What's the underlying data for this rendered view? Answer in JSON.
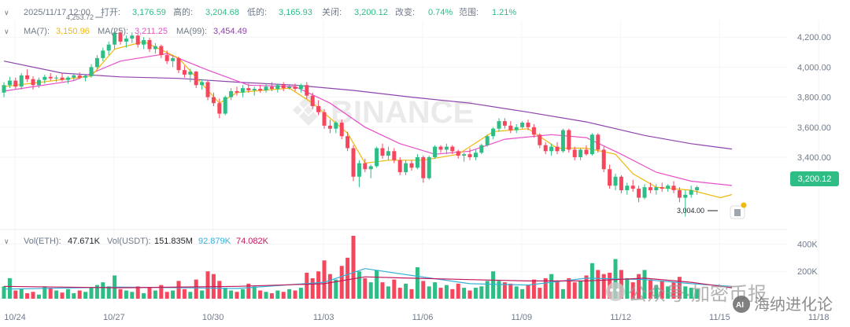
{
  "header": {
    "toggle_glyph": "∨",
    "datetime": "2025/11/17 12:00",
    "open_label": "打开:",
    "open": "3,176.59",
    "high_label": "高的:",
    "high": "3,204.68",
    "low_label": "低的:",
    "low": "3,165.93",
    "close_label": "关闭:",
    "close": "3,200.12",
    "change_label": "改变:",
    "change": "0.74%",
    "range_label": "范围:",
    "range": "1.21%"
  },
  "ma_legend": {
    "toggle_glyph": "∨",
    "ma7_label": "MA(7):",
    "ma7": "3,150.96",
    "ma25_label": "MA(25):",
    "ma25": "3,211.25",
    "ma99_label": "MA(99):",
    "ma99": "3,454.49"
  },
  "vol_legend": {
    "toggle_glyph": "∨",
    "eth_label": "Vol(ETH):",
    "eth": "47.671K",
    "usdt_label": "Vol(USDT):",
    "usdt": "151.835M",
    "ma1": "92.879K",
    "ma2": "74.082K"
  },
  "price_badge": "3,200.12",
  "high_marker": "4,253.72",
  "low_marker": "3,004.00",
  "watermark": {
    "text": "BINANCE",
    "icon": "binance-logo-icon"
  },
  "overlay_watermark": {
    "icon": "wechat-icon",
    "label": "公众号·加密币报"
  },
  "overlay_watermark2": {
    "icon": "ai-icon",
    "label": "海纳进化论"
  },
  "side_icon": "book-icon",
  "colors": {
    "up": "#2ebd85",
    "down": "#f6465d",
    "ma7": "#f0b90b",
    "ma25": "#e84fc8",
    "ma99": "#8e44ad",
    "vma1": "#35b0d6",
    "vma2": "#c2185b"
  },
  "chart_data": {
    "type": "candlestick",
    "title": "",
    "xlabel": "",
    "ylabel": "",
    "x_ticks": [
      "10/24",
      "10/27",
      "10/30",
      "11/03",
      "11/06",
      "11/09",
      "11/12",
      "11/15",
      "11/18"
    ],
    "y_ticks": [
      "4,200.00",
      "4,000.00",
      "3,800.00",
      "3,600.00",
      "3,400.00"
    ],
    "ylim": [
      2960,
      4290
    ],
    "vol_ticks": [
      "400K",
      "200K"
    ],
    "vol_ylim": [
      0,
      460000
    ],
    "legend_position": "top-left",
    "interval": "12h",
    "series": [
      {
        "name": "MA(7)",
        "last": 3150.96
      },
      {
        "name": "MA(25)",
        "last": 3211.25
      },
      {
        "name": "MA(99)",
        "last": 3454.49
      }
    ],
    "ohlc": [
      [
        3830,
        3900,
        3800,
        3880
      ],
      [
        3880,
        3935,
        3860,
        3910
      ],
      [
        3910,
        3930,
        3855,
        3870
      ],
      [
        3870,
        3960,
        3850,
        3945
      ],
      [
        3945,
        3985,
        3900,
        3920
      ],
      [
        3920,
        3940,
        3850,
        3880
      ],
      [
        3880,
        3930,
        3860,
        3915
      ],
      [
        3915,
        3950,
        3890,
        3935
      ],
      [
        3935,
        3960,
        3910,
        3925
      ],
      [
        3925,
        3945,
        3900,
        3930
      ],
      [
        3930,
        3960,
        3905,
        3915
      ],
      [
        3915,
        3940,
        3890,
        3930
      ],
      [
        3930,
        3960,
        3910,
        3945
      ],
      [
        3945,
        3965,
        3920,
        3930
      ],
      [
        3930,
        3950,
        3905,
        3940
      ],
      [
        3940,
        4020,
        3930,
        4000
      ],
      [
        4000,
        4080,
        3985,
        4060
      ],
      [
        4060,
        4130,
        4040,
        4110
      ],
      [
        4110,
        4170,
        4080,
        4150
      ],
      [
        4150,
        4253.72,
        4120,
        4230
      ],
      [
        4230,
        4240,
        4150,
        4170
      ],
      [
        4170,
        4210,
        4130,
        4190
      ],
      [
        4190,
        4230,
        4160,
        4210
      ],
      [
        4210,
        4220,
        4130,
        4150
      ],
      [
        4150,
        4200,
        4120,
        4180
      ],
      [
        4180,
        4195,
        4100,
        4120
      ],
      [
        4120,
        4160,
        4090,
        4140
      ],
      [
        4140,
        4150,
        4060,
        4080
      ],
      [
        4080,
        4110,
        4020,
        4040
      ],
      [
        4040,
        4080,
        4000,
        4060
      ],
      [
        4060,
        4070,
        3960,
        3980
      ],
      [
        3980,
        4010,
        3930,
        3950
      ],
      [
        3950,
        3990,
        3900,
        3970
      ],
      [
        3970,
        3975,
        3860,
        3880
      ],
      [
        3880,
        3920,
        3850,
        3900
      ],
      [
        3900,
        3910,
        3780,
        3800
      ],
      [
        3800,
        3830,
        3740,
        3760
      ],
      [
        3760,
        3790,
        3660,
        3690
      ],
      [
        3690,
        3810,
        3680,
        3800
      ],
      [
        3800,
        3860,
        3780,
        3840
      ],
      [
        3840,
        3870,
        3810,
        3830
      ],
      [
        3830,
        3880,
        3800,
        3860
      ],
      [
        3860,
        3890,
        3830,
        3845
      ],
      [
        3845,
        3870,
        3810,
        3855
      ],
      [
        3855,
        3880,
        3830,
        3845
      ],
      [
        3845,
        3890,
        3830,
        3870
      ],
      [
        3870,
        3900,
        3840,
        3855
      ],
      [
        3855,
        3890,
        3830,
        3880
      ],
      [
        3880,
        3900,
        3840,
        3860
      ],
      [
        3860,
        3880,
        3850,
        3870
      ],
      [
        3870,
        3890,
        3840,
        3855
      ],
      [
        3855,
        3890,
        3830,
        3880
      ],
      [
        3880,
        3900,
        3790,
        3810
      ],
      [
        3810,
        3830,
        3720,
        3740
      ],
      [
        3740,
        3780,
        3680,
        3700
      ],
      [
        3700,
        3720,
        3590,
        3610
      ],
      [
        3610,
        3650,
        3560,
        3590
      ],
      [
        3590,
        3640,
        3560,
        3630
      ],
      [
        3630,
        3650,
        3520,
        3540
      ],
      [
        3540,
        3570,
        3440,
        3460
      ],
      [
        3460,
        3480,
        3240,
        3270
      ],
      [
        3270,
        3380,
        3200,
        3360
      ],
      [
        3360,
        3390,
        3300,
        3320
      ],
      [
        3320,
        3350,
        3260,
        3340
      ],
      [
        3340,
        3470,
        3330,
        3460
      ],
      [
        3460,
        3490,
        3390,
        3410
      ],
      [
        3410,
        3470,
        3380,
        3440
      ],
      [
        3440,
        3460,
        3360,
        3380
      ],
      [
        3380,
        3400,
        3280,
        3300
      ],
      [
        3300,
        3380,
        3280,
        3360
      ],
      [
        3360,
        3380,
        3310,
        3330
      ],
      [
        3330,
        3420,
        3320,
        3400
      ],
      [
        3400,
        3410,
        3230,
        3260
      ],
      [
        3260,
        3410,
        3250,
        3400
      ],
      [
        3400,
        3480,
        3390,
        3470
      ],
      [
        3470,
        3480,
        3430,
        3450
      ],
      [
        3450,
        3490,
        3420,
        3470
      ],
      [
        3470,
        3480,
        3420,
        3440
      ],
      [
        3440,
        3450,
        3390,
        3410
      ],
      [
        3410,
        3430,
        3370,
        3420
      ],
      [
        3420,
        3460,
        3380,
        3400
      ],
      [
        3400,
        3450,
        3380,
        3430
      ],
      [
        3430,
        3490,
        3420,
        3480
      ],
      [
        3480,
        3550,
        3470,
        3540
      ],
      [
        3540,
        3600,
        3520,
        3590
      ],
      [
        3590,
        3660,
        3570,
        3640
      ],
      [
        3640,
        3660,
        3590,
        3610
      ],
      [
        3610,
        3640,
        3560,
        3580
      ],
      [
        3580,
        3620,
        3560,
        3600
      ],
      [
        3600,
        3640,
        3590,
        3630
      ],
      [
        3630,
        3650,
        3580,
        3600
      ],
      [
        3600,
        3620,
        3530,
        3550
      ],
      [
        3550,
        3560,
        3460,
        3480
      ],
      [
        3480,
        3500,
        3420,
        3440
      ],
      [
        3440,
        3490,
        3410,
        3470
      ],
      [
        3470,
        3500,
        3420,
        3440
      ],
      [
        3440,
        3590,
        3430,
        3580
      ],
      [
        3580,
        3590,
        3430,
        3450
      ],
      [
        3450,
        3470,
        3380,
        3400
      ],
      [
        3400,
        3460,
        3380,
        3450
      ],
      [
        3450,
        3480,
        3410,
        3420
      ],
      [
        3420,
        3560,
        3410,
        3550
      ],
      [
        3550,
        3560,
        3430,
        3450
      ],
      [
        3450,
        3470,
        3300,
        3320
      ],
      [
        3320,
        3350,
        3190,
        3210
      ],
      [
        3210,
        3290,
        3180,
        3270
      ],
      [
        3270,
        3280,
        3160,
        3180
      ],
      [
        3180,
        3230,
        3150,
        3210
      ],
      [
        3210,
        3250,
        3170,
        3190
      ],
      [
        3190,
        3210,
        3100,
        3130
      ],
      [
        3130,
        3220,
        3120,
        3200
      ],
      [
        3200,
        3230,
        3160,
        3180
      ],
      [
        3180,
        3220,
        3150,
        3200
      ],
      [
        3200,
        3230,
        3170,
        3190
      ],
      [
        3190,
        3220,
        3170,
        3210
      ],
      [
        3210,
        3240,
        3160,
        3180
      ],
      [
        3180,
        3200,
        3100,
        3130
      ],
      [
        3130,
        3180,
        3004,
        3150
      ],
      [
        3150,
        3210,
        3130,
        3180
      ],
      [
        3180,
        3210,
        3150,
        3200.12
      ]
    ],
    "ma7": [
      [
        0,
        3870
      ],
      [
        15,
        3940
      ],
      [
        19,
        4120
      ],
      [
        24,
        4170
      ],
      [
        30,
        4060
      ],
      [
        37,
        3760
      ],
      [
        40,
        3830
      ],
      [
        49,
        3860
      ],
      [
        53,
        3760
      ],
      [
        59,
        3560
      ],
      [
        62,
        3360
      ],
      [
        66,
        3380
      ],
      [
        72,
        3380
      ],
      [
        78,
        3420
      ],
      [
        84,
        3570
      ],
      [
        90,
        3590
      ],
      [
        95,
        3460
      ],
      [
        100,
        3460
      ],
      [
        105,
        3420
      ],
      [
        108,
        3290
      ],
      [
        112,
        3200
      ],
      [
        118,
        3180
      ],
      [
        123,
        3130
      ],
      [
        125,
        3150.96
      ]
    ],
    "ma25": [
      [
        0,
        3840
      ],
      [
        12,
        3910
      ],
      [
        20,
        4040
      ],
      [
        28,
        4090
      ],
      [
        35,
        3980
      ],
      [
        42,
        3880
      ],
      [
        50,
        3870
      ],
      [
        56,
        3760
      ],
      [
        62,
        3600
      ],
      [
        68,
        3490
      ],
      [
        74,
        3420
      ],
      [
        80,
        3440
      ],
      [
        86,
        3520
      ],
      [
        94,
        3550
      ],
      [
        100,
        3530
      ],
      [
        106,
        3420
      ],
      [
        112,
        3300
      ],
      [
        118,
        3240
      ],
      [
        125,
        3211.25
      ]
    ],
    "ma99": [
      [
        0,
        4040
      ],
      [
        10,
        3960
      ],
      [
        20,
        3935
      ],
      [
        30,
        3925
      ],
      [
        40,
        3900
      ],
      [
        50,
        3880
      ],
      [
        60,
        3845
      ],
      [
        70,
        3800
      ],
      [
        80,
        3760
      ],
      [
        90,
        3700
      ],
      [
        100,
        3635
      ],
      [
        110,
        3545
      ],
      [
        118,
        3490
      ],
      [
        125,
        3454.49
      ]
    ],
    "volume": [
      90,
      150,
      60,
      70,
      40,
      50,
      30,
      90,
      80,
      60,
      45,
      70,
      40,
      60,
      50,
      80,
      100,
      120,
      90,
      170,
      70,
      60,
      50,
      90,
      40,
      80,
      60,
      100,
      50,
      60,
      130,
      70,
      50,
      140,
      60,
      200,
      180,
      130,
      80,
      60,
      50,
      70,
      110,
      90,
      60,
      50,
      40,
      60,
      50,
      70,
      60,
      80,
      190,
      150,
      200,
      280,
      180,
      140,
      240,
      300,
      460,
      200,
      150,
      120,
      210,
      120,
      90,
      140,
      80,
      110,
      70,
      230,
      130,
      90,
      120,
      80,
      100,
      70,
      110,
      80,
      60,
      80,
      90,
      130,
      200,
      130,
      120,
      110,
      90,
      70,
      100,
      140,
      80,
      150,
      180,
      130,
      70,
      150,
      120,
      130,
      170,
      260,
      210,
      180,
      190,
      290,
      210,
      150,
      120,
      180,
      210,
      140,
      100,
      130,
      90,
      120,
      160,
      90,
      80,
      70,
      100,
      180,
      90,
      80,
      60,
      50
    ],
    "vol_ma1": [
      [
        0,
        70
      ],
      [
        20,
        85
      ],
      [
        40,
        75
      ],
      [
        55,
        120
      ],
      [
        62,
        220
      ],
      [
        70,
        170
      ],
      [
        80,
        110
      ],
      [
        90,
        100
      ],
      [
        100,
        150
      ],
      [
        110,
        140
      ],
      [
        118,
        110
      ],
      [
        125,
        90
      ]
    ],
    "vol_ma2": [
      [
        0,
        90
      ],
      [
        20,
        80
      ],
      [
        40,
        90
      ],
      [
        55,
        110
      ],
      [
        62,
        160
      ],
      [
        70,
        150
      ],
      [
        80,
        140
      ],
      [
        90,
        130
      ],
      [
        100,
        130
      ],
      [
        110,
        150
      ],
      [
        118,
        120
      ],
      [
        125,
        80
      ]
    ]
  }
}
